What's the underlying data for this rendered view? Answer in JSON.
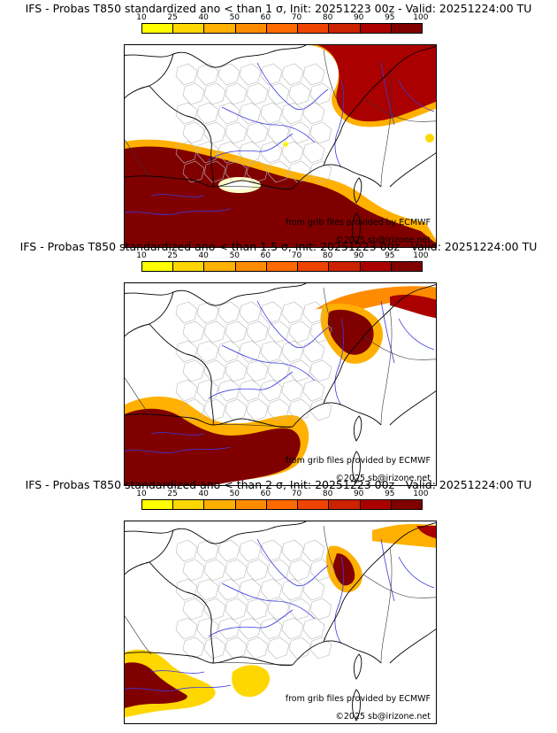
{
  "colorbar": {
    "ticks": [
      "10",
      "25",
      "40",
      "50",
      "60",
      "70",
      "80",
      "90",
      "95",
      "100"
    ],
    "colors": [
      "#ffff00",
      "#ffd700",
      "#ffb000",
      "#ff8c00",
      "#ff6a00",
      "#ee4400",
      "#cc2200",
      "#aa0000",
      "#800000"
    ]
  },
  "panels": [
    {
      "title": "IFS - Probas T850  standardized ano < than 1 σ, Init: 20251223 00z - Valid: 20251224:00 TU",
      "source": "from grib files provided by ECMWF",
      "copyright": "©2025 sb@irizone.net",
      "level": 1
    },
    {
      "title": "IFS - Probas T850  standardized ano < than 1.5 σ, Init: 20251223 00z - Valid: 20251224:00 TU",
      "source": "from grib files provided by ECMWF",
      "copyright": "©2025 sb@irizone.net",
      "level": 2
    },
    {
      "title": "IFS - Probas T850  standardized ano < than 2 σ, Init: 20251223 00z - Valid: 20251224:00 TU",
      "source": "from grib files provided by ECMWF",
      "copyright": "©2025 sb@irizone.net",
      "level": 3
    }
  ]
}
